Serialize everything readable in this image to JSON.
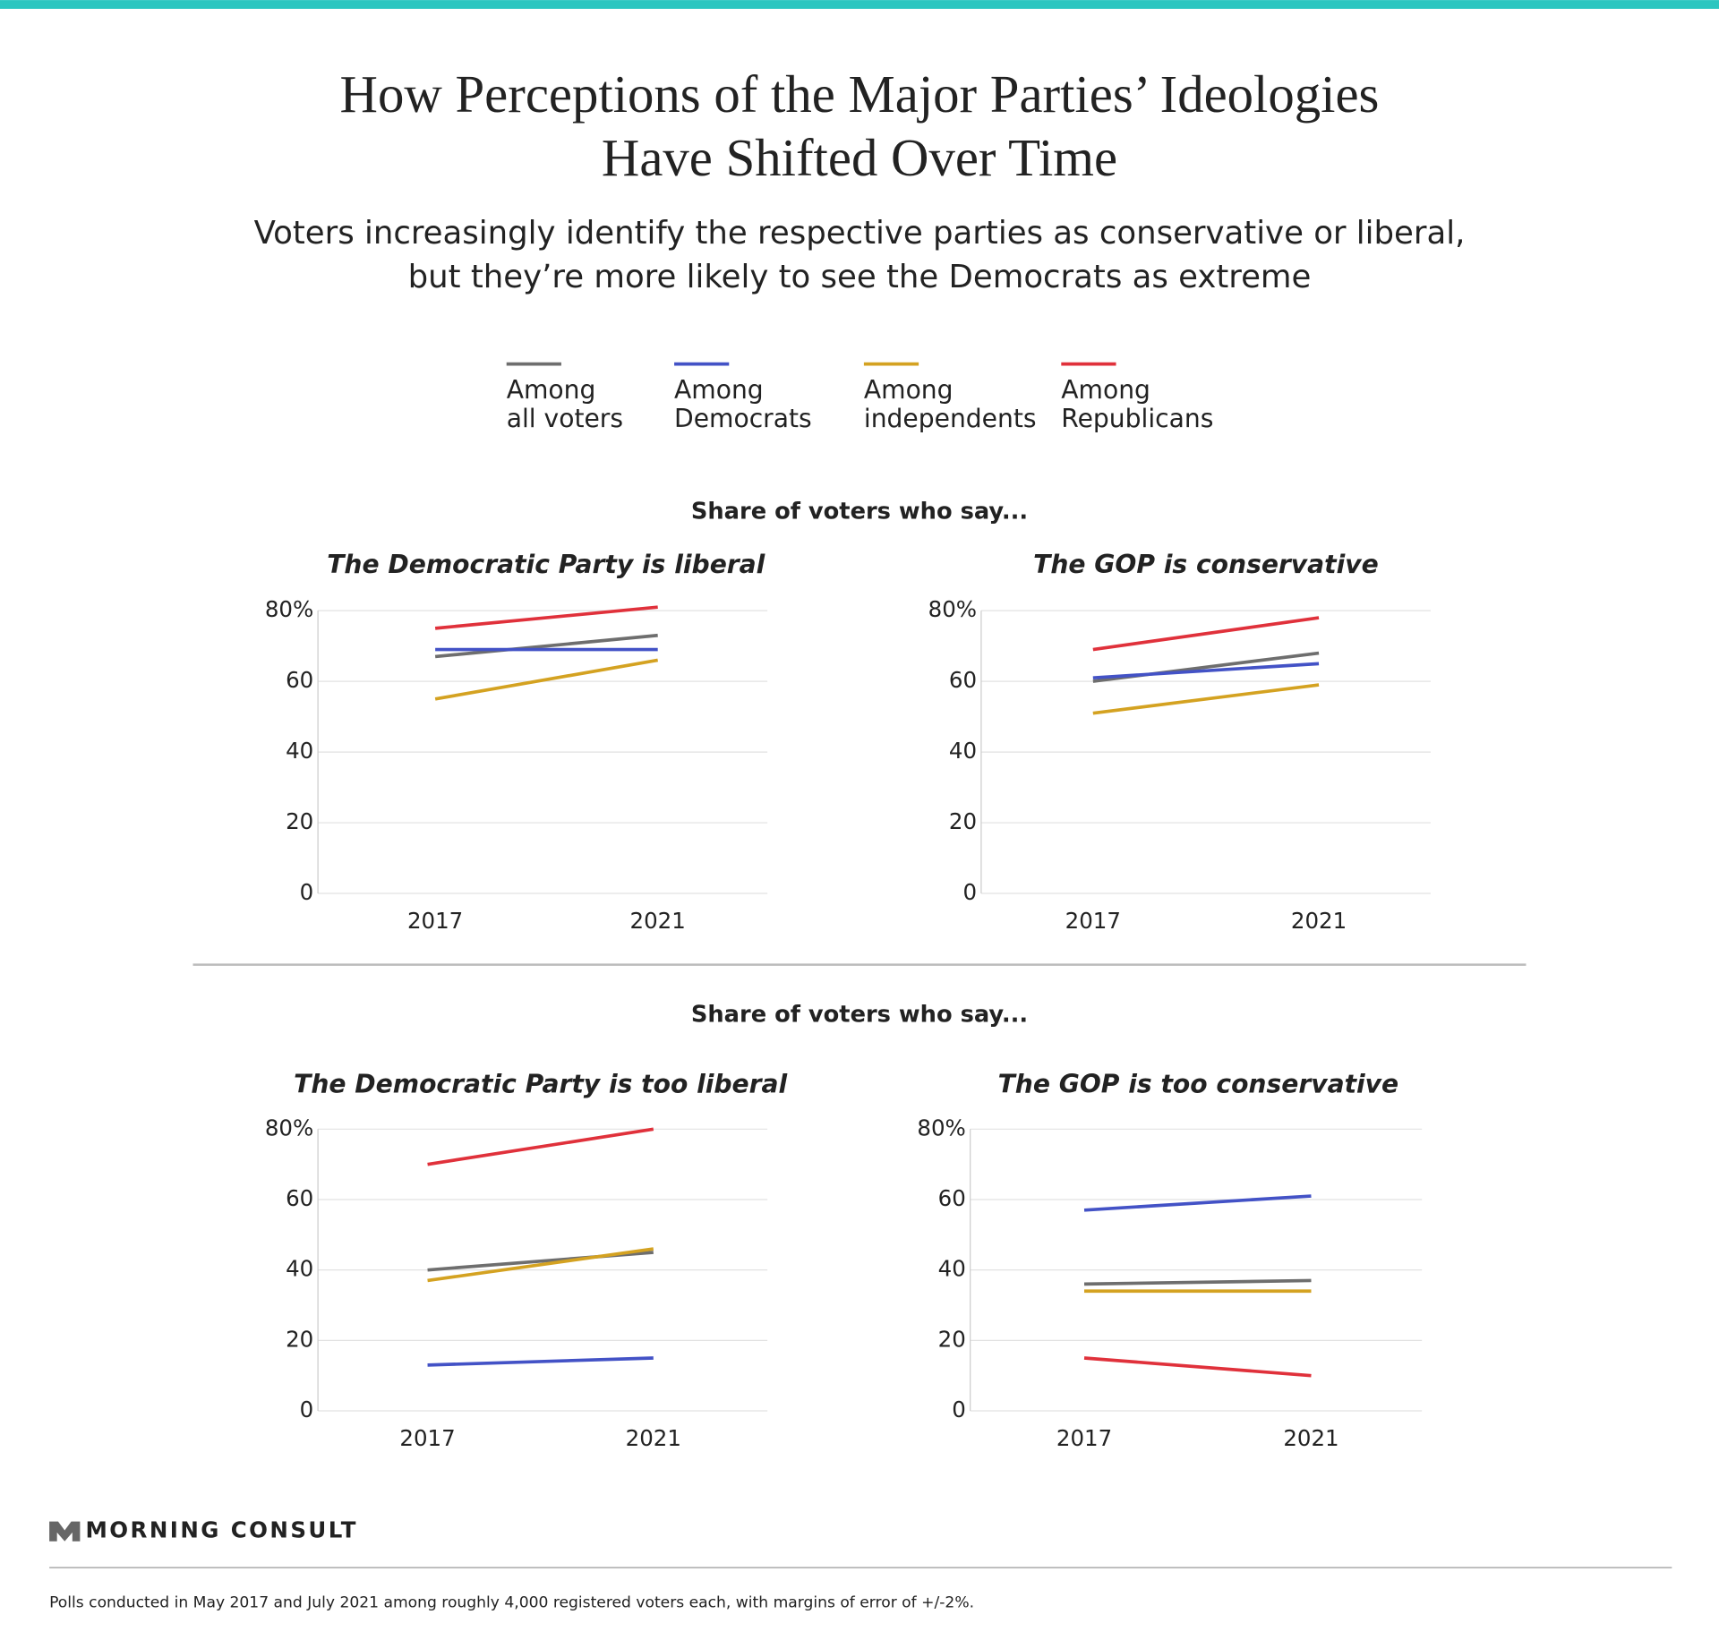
{
  "header": {
    "title": [
      "How Perceptions of the Major Parties’ Ideologies",
      "Have Shifted Over Time"
    ],
    "subtitle": [
      "Voters increasingly identify the respective parties as conservative or liberal,",
      "but they’re more likely to see the Democrats as extreme"
    ]
  },
  "legend": [
    {
      "name": [
        "Among",
        "all voters"
      ],
      "color": "#6e6e6e"
    },
    {
      "name": [
        "Among",
        "Democrats"
      ],
      "color": "#4352c6"
    },
    {
      "name": [
        "Among",
        "independents"
      ],
      "color": "#d4a221"
    },
    {
      "name": [
        "Among",
        "Republicans"
      ],
      "color": "#e0313b"
    }
  ],
  "sections": [
    {
      "heading": "Share of voters who say..."
    },
    {
      "heading": "Share of voters who say..."
    }
  ],
  "chart_data": [
    {
      "type": "line",
      "title": "The Democratic Party is liberal",
      "categories": [
        "2017",
        "2021"
      ],
      "series": [
        {
          "values": [
            67,
            73
          ]
        },
        {
          "values": [
            69,
            69
          ]
        },
        {
          "values": [
            55,
            66
          ]
        },
        {
          "values": [
            75,
            81
          ]
        }
      ],
      "ylim": [
        0,
        80
      ],
      "yticks": [
        0,
        20,
        40,
        60,
        {
          "value": 80,
          "label": "80%"
        }
      ],
      "grid": true
    },
    {
      "type": "line",
      "title": "The GOP is conservative",
      "categories": [
        "2017",
        "2021"
      ],
      "series": [
        {
          "values": [
            60,
            68
          ]
        },
        {
          "values": [
            61,
            65
          ]
        },
        {
          "values": [
            51,
            59
          ]
        },
        {
          "values": [
            69,
            78
          ]
        }
      ],
      "ylim": [
        0,
        80
      ],
      "yticks": [
        0,
        20,
        40,
        60,
        {
          "value": 80,
          "label": "80%"
        }
      ],
      "grid": true
    },
    {
      "type": "line",
      "title": "The Democratic Party is too liberal",
      "categories": [
        "2017",
        "2021"
      ],
      "series": [
        {
          "values": [
            40,
            45
          ]
        },
        {
          "values": [
            13,
            15
          ]
        },
        {
          "values": [
            37,
            46
          ]
        },
        {
          "values": [
            70,
            80
          ]
        }
      ],
      "ylim": [
        0,
        80
      ],
      "yticks": [
        0,
        20,
        40,
        60,
        {
          "value": 80,
          "label": "80%"
        }
      ],
      "grid": true
    },
    {
      "type": "line",
      "title": "The GOP is too conservative",
      "categories": [
        "2017",
        "2021"
      ],
      "series": [
        {
          "values": [
            36,
            37
          ]
        },
        {
          "values": [
            57,
            61
          ]
        },
        {
          "values": [
            34,
            34
          ]
        },
        {
          "values": [
            15,
            10
          ]
        }
      ],
      "ylim": [
        0,
        80
      ],
      "yticks": [
        0,
        20,
        40,
        60,
        {
          "value": 80,
          "label": "80%"
        }
      ],
      "grid": true
    }
  ],
  "brand": "MORNING CONSULT",
  "footnote": "Polls conducted in May 2017 and July 2021 among roughly 4,000 registered voters each, with margins of error of +/-2%."
}
